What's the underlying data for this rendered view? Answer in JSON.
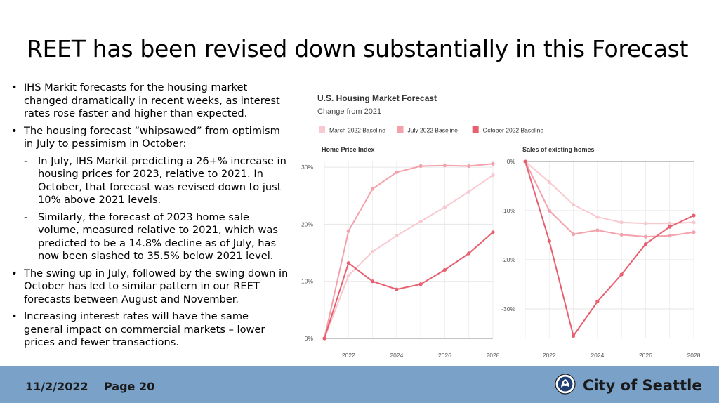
{
  "slide": {
    "title": "REET has been revised down substantially in this Forecast",
    "bullets": [
      {
        "marker": "•",
        "text": "IHS Markit forecasts for the housing market changed dramatically in recent weeks, as interest rates rose faster and higher than expected."
      },
      {
        "marker": "•",
        "text": "The housing forecast “whipsawed” from optimism in July to pessimism in October:"
      },
      {
        "marker": "-",
        "text": "In July, IHS Markit predicting a 26+% increase in housing prices for 2023, relative to 2021. In October, that forecast was revised down to just 10% above 2021 levels."
      },
      {
        "marker": "-",
        "text": "Similarly, the forecast of 2023 home sale volume, measured relative to 2021, which was predicted to be a 14.8% decline as of July, has now been slashed to 35.5% below 2021 level."
      },
      {
        "marker": "•",
        "text": "The swing up in July, followed by the swing down in October has led to similar pattern in our REET forecasts between August and November."
      },
      {
        "marker": "•",
        "text": "Increasing interest rates will have the same general impact on commercial markets – lower prices and fewer transactions."
      }
    ]
  },
  "footer": {
    "date": "11/2/2022",
    "page": "Page 20",
    "org": "City of Seattle",
    "logo_icon": "city-seal-logo",
    "background": "#7aa2c9"
  },
  "chart_data": [
    {
      "type": "line",
      "title": "U.S. Housing Market Forecast",
      "subtitle": "Change from 2021",
      "panel_title": "Home Price Index",
      "x": [
        2021,
        2022,
        2023,
        2024,
        2025,
        2026,
        2027,
        2028
      ],
      "x_tick_labels": [
        "2022",
        "2024",
        "2026",
        "2028"
      ],
      "y_tick_labels": [
        "0%",
        "10%",
        "20%",
        "30%"
      ],
      "ylim": [
        0,
        31
      ],
      "grid": true,
      "legend_position": "top",
      "series": [
        {
          "name": "March 2022 Baseline",
          "color": "#f8c9d0",
          "values": [
            0,
            11,
            15.2,
            18,
            20.5,
            23,
            25.7,
            28.6
          ]
        },
        {
          "name": "July 2022 Baseline",
          "color": "#f4a1ac",
          "values": [
            0,
            18.8,
            26.2,
            29.1,
            30.2,
            30.3,
            30.2,
            30.6
          ]
        },
        {
          "name": "October 2022 Baseline",
          "color": "#e8606f",
          "values": [
            0,
            13.2,
            10,
            8.6,
            9.5,
            12,
            14.9,
            18.6
          ]
        }
      ]
    },
    {
      "type": "line",
      "panel_title": "Sales of existing homes",
      "x": [
        2021,
        2022,
        2023,
        2024,
        2025,
        2026,
        2027,
        2028
      ],
      "x_tick_labels": [
        "2022",
        "2024",
        "2026",
        "2028"
      ],
      "y_tick_labels": [
        "0%",
        "-10%",
        "-20%",
        "-30%"
      ],
      "ylim": [
        -36,
        0
      ],
      "grid": true,
      "series": [
        {
          "name": "March 2022 Baseline",
          "color": "#f8c9d0",
          "values": [
            0,
            -4.2,
            -8.8,
            -11.3,
            -12.4,
            -12.6,
            -12.6,
            -12.4
          ]
        },
        {
          "name": "July 2022 Baseline",
          "color": "#f4a1ac",
          "values": [
            0,
            -10,
            -14.8,
            -14,
            -14.9,
            -15.3,
            -15.1,
            -14.4
          ]
        },
        {
          "name": "October 2022 Baseline",
          "color": "#e8606f",
          "values": [
            0,
            -16.2,
            -35.5,
            -28.5,
            -23,
            -16.8,
            -13.3,
            -11
          ]
        }
      ]
    }
  ]
}
